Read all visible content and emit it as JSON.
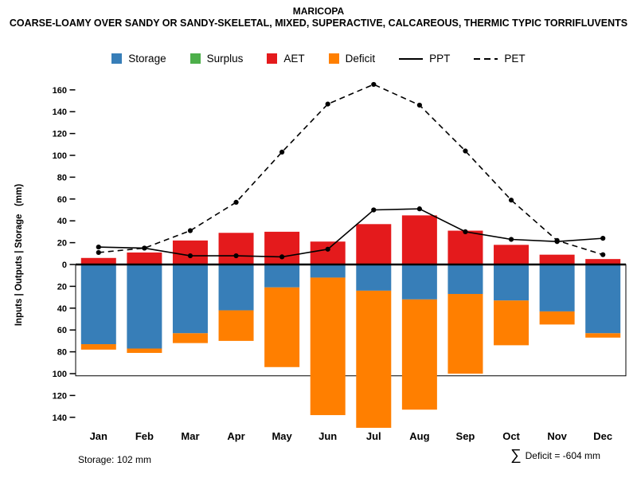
{
  "chart_data": {
    "type": "mixed-bar-line",
    "title": "MARICOPA",
    "subtitle": "COARSE-LOAMY OVER SANDY OR SANDY-SKELETAL, MIXED, SUPERACTIVE, CALCAREOUS, THERMIC TYPIC TORRIFLUVENTS",
    "ylabel": "Inputs | Outputs | Storage   (mm)",
    "categories": [
      "Jan",
      "Feb",
      "Mar",
      "Apr",
      "May",
      "Jun",
      "Jul",
      "Aug",
      "Sep",
      "Oct",
      "Nov",
      "Dec"
    ],
    "series": [
      {
        "name": "AET",
        "type": "bar",
        "direction": "up",
        "color": "#E41A1C",
        "values": [
          6,
          11,
          22,
          29,
          30,
          21,
          37,
          45,
          31,
          18,
          9,
          5
        ]
      },
      {
        "name": "Surplus",
        "type": "bar",
        "direction": "up",
        "color": "#4DAF4A",
        "values": [
          0,
          0,
          0,
          0,
          0,
          0,
          0,
          0,
          0,
          0,
          0,
          0
        ]
      },
      {
        "name": "Storage",
        "type": "bar",
        "direction": "down",
        "color": "#377EB8",
        "values": [
          73,
          77,
          63,
          42,
          21,
          12,
          24,
          32,
          27,
          33,
          43,
          63
        ]
      },
      {
        "name": "Deficit",
        "type": "bar",
        "direction": "down",
        "stack_on": "Storage",
        "color": "#FF7F00",
        "values": [
          5,
          4,
          9,
          28,
          73,
          126,
          128,
          101,
          73,
          41,
          12,
          4
        ]
      },
      {
        "name": "PPT",
        "type": "line",
        "style": "solid",
        "color": "#000000",
        "values": [
          16,
          15,
          8,
          8,
          7,
          14,
          50,
          51,
          30,
          23,
          21,
          24
        ]
      },
      {
        "name": "PET",
        "type": "line",
        "style": "dashed",
        "color": "#000000",
        "values": [
          11,
          15,
          31,
          57,
          103,
          147,
          165,
          146,
          104,
          59,
          22,
          9
        ]
      }
    ],
    "y_axis": {
      "ticks_up": [
        0,
        20,
        40,
        60,
        80,
        100,
        120,
        140,
        160
      ],
      "ticks_down": [
        20,
        40,
        60,
        80,
        100,
        120,
        140
      ]
    },
    "legend": {
      "items": [
        {
          "label": "Storage",
          "type": "square",
          "color": "#377EB8"
        },
        {
          "label": "Surplus",
          "type": "square",
          "color": "#4DAF4A"
        },
        {
          "label": "AET",
          "type": "square",
          "color": "#E41A1C"
        },
        {
          "label": "Deficit",
          "type": "square",
          "color": "#FF7F00"
        },
        {
          "label": "PPT",
          "type": "line-solid",
          "color": "#000000"
        },
        {
          "label": "PET",
          "type": "line-dashed",
          "color": "#000000"
        }
      ]
    },
    "storage_capacity_mm": 102,
    "annotations": {
      "storage_note": "Storage: 102 mm",
      "sigma": "∑",
      "deficit_note": "Deficit = -604 mm"
    }
  }
}
